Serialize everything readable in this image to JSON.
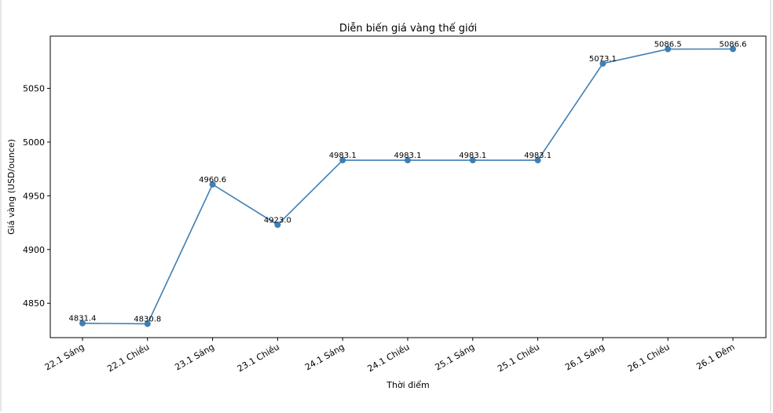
{
  "chart_data": {
    "type": "line",
    "title": "Diễn biến giá vàng thế giới",
    "xlabel": "Thời điểm",
    "ylabel": "Giá vàng (USD/ounce)",
    "categories": [
      "22.1 Sáng",
      "22.1 Chiều",
      "23.1 Sáng",
      "23.1 Chiều",
      "24.1 Sáng",
      "24.1 Chiều",
      "25.1 Sáng",
      "25.1 Chiều",
      "26.1 Sáng",
      "26.1 Chiều",
      "26.1 Đêm"
    ],
    "values": [
      4831.4,
      4830.8,
      4960.6,
      4923.0,
      4983.1,
      4983.1,
      4983.1,
      4983.1,
      5073.1,
      5086.5,
      5086.6
    ],
    "data_labels": [
      "4831.4",
      "4830.8",
      "4960.6",
      "4923.0",
      "4983.1",
      "4983.1",
      "4983.1",
      "4983.1",
      "5073.1",
      "5086.5",
      "5086.6"
    ],
    "yticks": [
      4850,
      4900,
      4950,
      5000,
      5050
    ],
    "ylim": [
      4818,
      5098.6
    ],
    "grid": false,
    "legend": null,
    "line_color": "#3f7fb4",
    "marker": "circle"
  }
}
